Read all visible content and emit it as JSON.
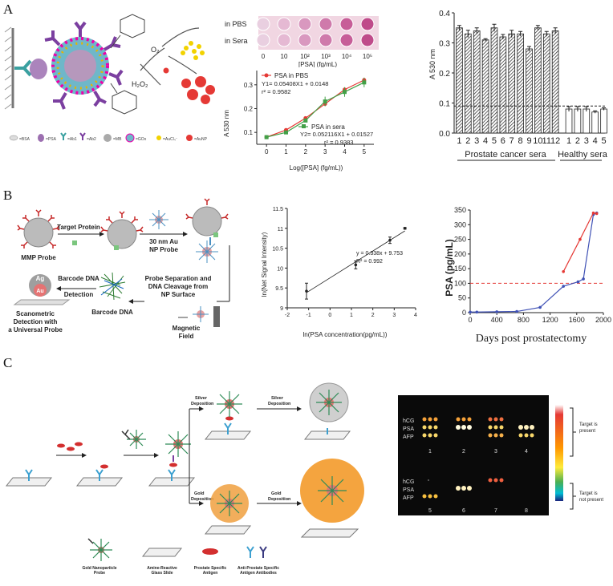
{
  "panel_labels": {
    "a": "A",
    "b": "B",
    "c": "C"
  },
  "panelA": {
    "legend_items": [
      "=BSA",
      "=PSA",
      "=Ab1",
      "=Ab2",
      "=MB",
      "=GOx",
      "=AuCl₄⁻",
      "=AuNP"
    ],
    "mol_labels": {
      "o2": "O₂",
      "h2o2": "H₂O₂"
    },
    "wells": {
      "row1": "in PBS",
      "row2": "in Sera",
      "ticks": [
        "0",
        "10",
        "10²",
        "10³",
        "10⁴",
        "10⁵"
      ],
      "xlabel": "[PSA] (fg/mL)"
    },
    "line_chart": {
      "ylabel": "A 530 nm",
      "xlabel": "Log([PSA] (fg/mL))",
      "series1": {
        "name": "PSA in PBS",
        "eq": "Y1= 0.05408X1 + 0.0148",
        "r2": "r² = 0.9582"
      },
      "series2": {
        "name": "PSA in sera",
        "eq": "Y2= 0.052116X1 + 0.01527",
        "r2": "r² = 0.9383"
      }
    },
    "bar_chart": {
      "ylabel": "A 530 nm",
      "group1": "Prostate cancer sera",
      "group2": "Healthy sera"
    }
  },
  "panelB": {
    "mmp_probe": "MMP Probe",
    "target_protein": "Target Protein",
    "au_np_probe_1": "30 nm Au",
    "au_np_probe_2": "NP Probe",
    "probe_sep_1": "Probe Separation and",
    "probe_sep_2": "DNA Cleavage from",
    "probe_sep_3": "NP Surface",
    "magnetic_1": "Magnetic",
    "magnetic_2": "Field",
    "barcode_dna": "Barcode DNA",
    "barcode_detect_1": "Barcode DNA",
    "barcode_detect_2": "Detection",
    "scano_1": "Scanometric",
    "scano_2": "Detection with",
    "scano_3": "a Universal Probe",
    "ag": "Ag",
    "au": "Au",
    "line_chart": {
      "ylabel": "ln(Net Signal Intensity)",
      "xlabel": "ln(PSA concentration(pg/mL))",
      "eq": "y = 0.338x + 9.753",
      "r2": "R² = 0.992"
    },
    "psa_chart": {
      "ylabel": "PSA (pg/mL)",
      "xlabel": "Days post prostatectomy"
    }
  },
  "panelC": {
    "silver_dep_1": "Silver",
    "silver_dep_2": "Deposition",
    "silver_dep2_1": "Silver",
    "silver_dep2_2": "Deposition",
    "gold_dep_1": "Gold",
    "gold_dep_2": "Deposition",
    "gold_dep2_1": "Gold",
    "gold_dep2_2": "Deposition",
    "legend": {
      "gold_np_1": "Gold Nanoparticle",
      "gold_np_2": "Probe",
      "slide_1": "Amine-Reactive",
      "slide_2": "Glass Slide",
      "psa_1": "Prostate Specific",
      "psa_2": "Antigen",
      "ab_1": "Anti-Prostate Specific",
      "ab_2": "Antigen Antibodies"
    },
    "array": {
      "row_labels": [
        "hCG",
        "PSA",
        "AFP"
      ],
      "numbers_top": [
        "1",
        "2",
        "3",
        "4"
      ],
      "numbers_bottom": [
        "5",
        "6",
        "7",
        "8"
      ],
      "present_1": "Target is",
      "present_2": "present",
      "absent_1": "Target is",
      "absent_2": "not present"
    }
  },
  "chart_data": [
    {
      "type": "line",
      "title": "",
      "xlabel": "Log([PSA] (fg/mL))",
      "ylabel": "A 530 nm",
      "x": [
        0,
        1,
        2,
        3,
        4,
        5
      ],
      "series": [
        {
          "name": "PSA in PBS",
          "values": [
            0.08,
            0.11,
            0.16,
            0.22,
            0.28,
            0.32
          ],
          "color": "#e53935"
        },
        {
          "name": "PSA in sera",
          "values": [
            0.08,
            0.1,
            0.15,
            0.23,
            0.27,
            0.31
          ],
          "color": "#43a047"
        }
      ],
      "xlim": [
        -0.5,
        5.5
      ],
      "ylim": [
        0.05,
        0.36
      ],
      "yticks": [
        "0.1",
        "0.2",
        "0.3"
      ]
    },
    {
      "type": "bar",
      "title": "",
      "ylabel": "A 530 nm",
      "categories": [
        "1",
        "2",
        "3",
        "4",
        "5",
        "6",
        "7",
        "8",
        "9",
        "10",
        "11",
        "12",
        "1",
        "2",
        "3",
        "4",
        "5"
      ],
      "values": [
        0.35,
        0.33,
        0.34,
        0.31,
        0.35,
        0.32,
        0.33,
        0.33,
        0.28,
        0.35,
        0.33,
        0.34,
        0.08,
        0.08,
        0.08,
        0.07,
        0.08
      ],
      "errors": [
        0.008,
        0.012,
        0.01,
        0.004,
        0.012,
        0.008,
        0.012,
        0.008,
        0.008,
        0.008,
        0.008,
        0.01,
        0.008,
        0.008,
        0.008,
        0.004,
        0.004
      ],
      "groups": [
        {
          "name": "Prostate cancer sera",
          "count": 12,
          "hatched": true
        },
        {
          "name": "Healthy sera",
          "count": 5,
          "hatched": false
        }
      ],
      "threshold": 0.09,
      "ylim": [
        0,
        0.4
      ],
      "yticks": [
        "0.0",
        "0.1",
        "0.2",
        "0.3",
        "0.4"
      ]
    },
    {
      "type": "line",
      "title": "",
      "xlabel": "ln(PSA concentration(pg/mL))",
      "ylabel": "ln(Net Signal Intensity)",
      "x": [
        -1.1,
        1.2,
        2.8,
        3.5
      ],
      "y": [
        9.42,
        10.08,
        10.7,
        11.0
      ],
      "errors": [
        0.2,
        0.1,
        0.08,
        0.02
      ],
      "fit": {
        "slope": 0.338,
        "intercept": 9.753
      },
      "xlim": [
        -2,
        4
      ],
      "ylim": [
        9,
        11.5
      ],
      "xticks": [
        "-2",
        "-1",
        "0",
        "1",
        "2",
        "3",
        "4"
      ],
      "yticks": [
        "9",
        "9.5",
        "10",
        "10.5",
        "11",
        "11.5"
      ]
    },
    {
      "type": "line",
      "title": "",
      "xlabel": "Days post prostatectomy",
      "ylabel": "PSA (pg/mL)",
      "series": [
        {
          "name": "",
          "color": "#3f51b5",
          "x": [
            0,
            100,
            400,
            700,
            1050,
            1400,
            1620,
            1700,
            1850,
            1900
          ],
          "y": [
            2,
            2,
            3,
            4,
            18,
            90,
            105,
            115,
            335,
            340
          ]
        },
        {
          "name": "",
          "color": "#e53935",
          "x": [
            1400,
            1650,
            1850,
            1900
          ],
          "y": [
            140,
            250,
            340,
            338
          ]
        }
      ],
      "threshold": 100,
      "xlim": [
        0,
        2000
      ],
      "ylim": [
        0,
        350
      ],
      "xticks": [
        "0",
        "400",
        "800",
        "1200",
        "1600",
        "2000"
      ],
      "yticks": [
        "0",
        "50",
        "100",
        "150",
        "200",
        "250",
        "300",
        "350"
      ]
    }
  ]
}
